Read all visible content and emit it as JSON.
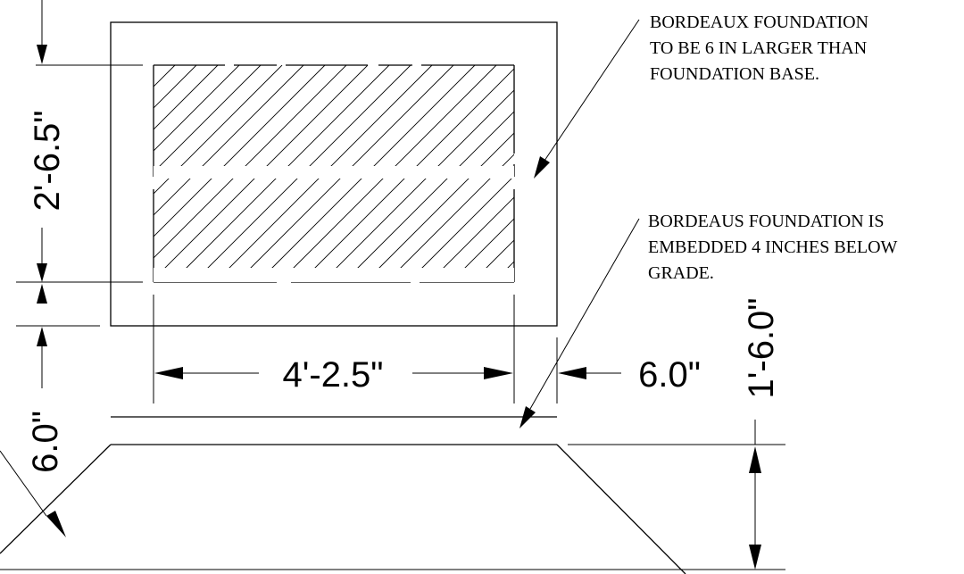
{
  "drawing": {
    "dimensions": {
      "base_height": "2'-6.5\"",
      "base_width": "4'-2.5\"",
      "offset_right": "6.0\"",
      "offset_left": "6.0\"",
      "embed_depth": "1'-6.0\""
    },
    "notes": {
      "note_1": [
        "BORDEAUX FOUNDATION",
        "TO BE 6 IN LARGER THAN",
        "FOUNDATION BASE."
      ],
      "note_2": [
        "BORDEAUS FOUNDATION IS",
        "EMBEDDED 4 INCHES BELOW",
        "GRADE."
      ]
    }
  }
}
